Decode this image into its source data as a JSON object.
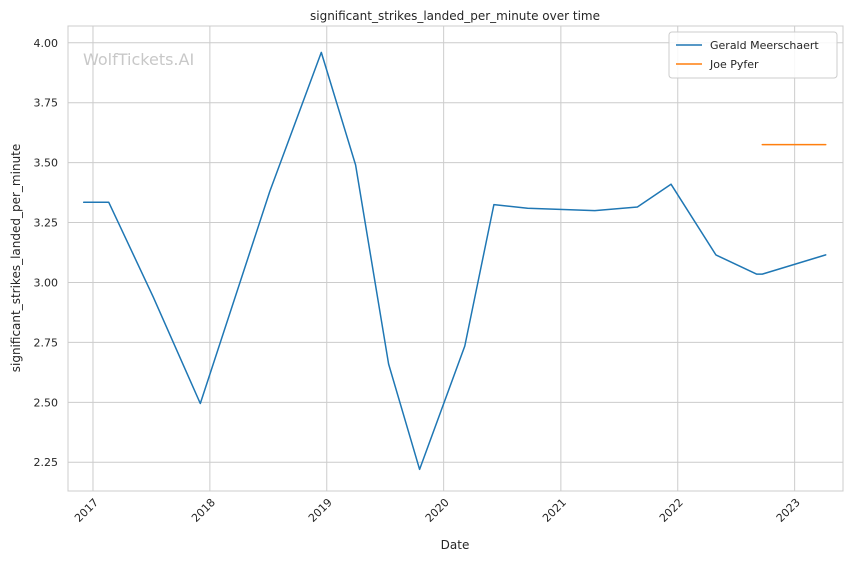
{
  "watermark": "WolfTickets.AI",
  "chart_data": {
    "type": "line",
    "title": "significant_strikes_landed_per_minute over time",
    "xlabel": "Date",
    "ylabel": "significant_strikes_landed_per_minute",
    "x_ticks": [
      "2017",
      "2018",
      "2019",
      "2020",
      "2021",
      "2022",
      "2023"
    ],
    "y_ticks": [
      "2.25",
      "2.50",
      "2.75",
      "3.00",
      "3.25",
      "3.50",
      "3.75",
      "4.00"
    ],
    "xlim": [
      "2016-10-15",
      "2023-06-01"
    ],
    "ylim": [
      2.13,
      4.07
    ],
    "grid": true,
    "legend_position": "top-right",
    "series": [
      {
        "name": "Gerald Meerschaert",
        "color": "#1f77b4",
        "points": [
          [
            "2016-12-03",
            3.335
          ],
          [
            "2017-02-19",
            3.335
          ],
          [
            "2017-07-08",
            2.94
          ],
          [
            "2017-12-02",
            2.495
          ],
          [
            "2018-07-07",
            3.38
          ],
          [
            "2018-12-15",
            3.96
          ],
          [
            "2019-04-01",
            3.49
          ],
          [
            "2019-07-13",
            2.66
          ],
          [
            "2019-10-18",
            2.22
          ],
          [
            "2020-03-07",
            2.735
          ],
          [
            "2020-06-06",
            3.325
          ],
          [
            "2020-09-19",
            3.31
          ],
          [
            "2021-04-17",
            3.3
          ],
          [
            "2021-08-28",
            3.315
          ],
          [
            "2021-12-11",
            3.41
          ],
          [
            "2022-04-30",
            3.115
          ],
          [
            "2022-09-04",
            3.035
          ],
          [
            "2022-09-22",
            3.035
          ],
          [
            "2023-04-08",
            3.115
          ]
        ]
      },
      {
        "name": "Joe Pyfer",
        "color": "#ff7f0e",
        "points": [
          [
            "2022-09-22",
            3.575
          ],
          [
            "2023-04-08",
            3.575
          ]
        ]
      }
    ]
  }
}
